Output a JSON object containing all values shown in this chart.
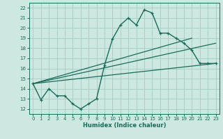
{
  "xlabel": "Humidex (Indice chaleur)",
  "ylabel": "",
  "bg_color": "#cce8e0",
  "grid_color": "#a8cfc8",
  "line_color": "#1a6b5a",
  "xlim": [
    -0.5,
    23.5
  ],
  "ylim": [
    11.5,
    22.5
  ],
  "xticks": [
    0,
    1,
    2,
    3,
    4,
    5,
    6,
    7,
    8,
    9,
    10,
    11,
    12,
    13,
    14,
    15,
    16,
    17,
    18,
    19,
    20,
    21,
    22,
    23
  ],
  "yticks": [
    12,
    13,
    14,
    15,
    16,
    17,
    18,
    19,
    20,
    21,
    22
  ],
  "line1_x": [
    0,
    1,
    2,
    3,
    4,
    5,
    6,
    7,
    8,
    9,
    10,
    11,
    12,
    13,
    14,
    15,
    16,
    17,
    18,
    19,
    20,
    21,
    22,
    23
  ],
  "line1_y": [
    14.5,
    12.9,
    14.0,
    13.3,
    13.3,
    12.5,
    12.0,
    12.5,
    13.0,
    16.3,
    18.9,
    20.3,
    21.0,
    20.3,
    21.8,
    21.5,
    19.5,
    19.5,
    19.0,
    18.5,
    17.8,
    16.5,
    16.5,
    16.5
  ],
  "line2_x": [
    0,
    23
  ],
  "line2_y": [
    14.5,
    16.5
  ],
  "line3_x": [
    0,
    23
  ],
  "line3_y": [
    14.5,
    18.5
  ],
  "line4_x": [
    0,
    20
  ],
  "line4_y": [
    14.5,
    19.0
  ]
}
